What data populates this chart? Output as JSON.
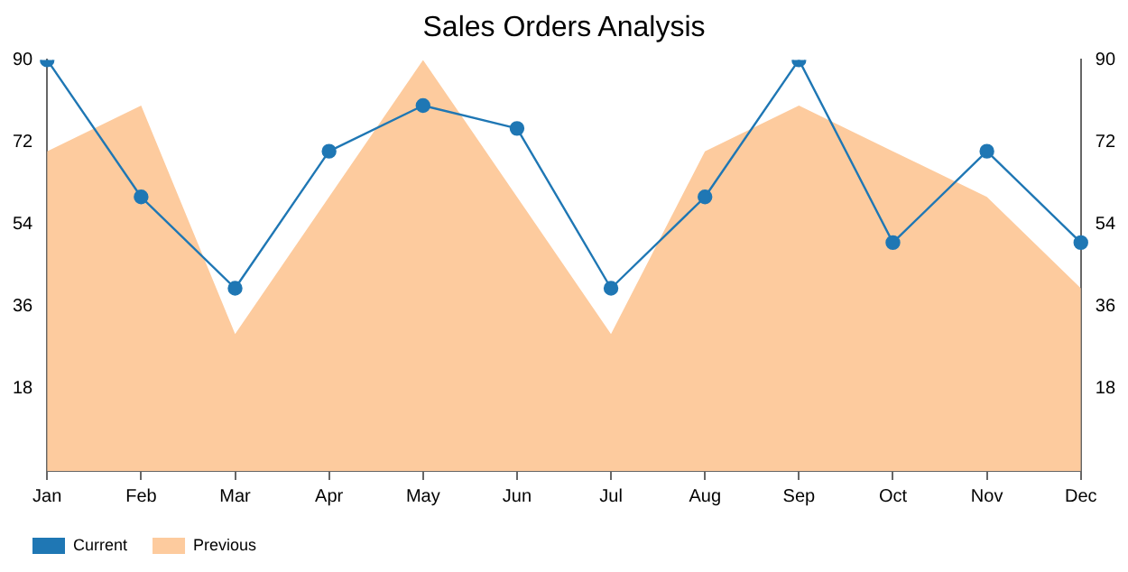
{
  "chart_data": {
    "type": "line",
    "title": "Sales Orders Analysis",
    "categories": [
      "Jan",
      "Feb",
      "Mar",
      "Apr",
      "May",
      "Jun",
      "Jul",
      "Aug",
      "Sep",
      "Oct",
      "Nov",
      "Dec"
    ],
    "series": [
      {
        "name": "Current",
        "type": "line",
        "color": "#1f77b4",
        "marker": "circle",
        "values": [
          90,
          60,
          40,
          70,
          80,
          75,
          40,
          60,
          90,
          50,
          70,
          50
        ]
      },
      {
        "name": "Previous",
        "type": "area",
        "color": "#fdcb9e",
        "marker": "none",
        "values": [
          70,
          80,
          30,
          60,
          90,
          60,
          30,
          70,
          80,
          70,
          60,
          40
        ]
      }
    ],
    "ylim": [
      0,
      90
    ],
    "yticks": [
      18,
      36,
      54,
      72,
      90
    ],
    "y2lim": [
      0,
      90
    ],
    "y2ticks": [
      18,
      36,
      54,
      72,
      90
    ],
    "grid": false,
    "legend": "bottom left"
  }
}
